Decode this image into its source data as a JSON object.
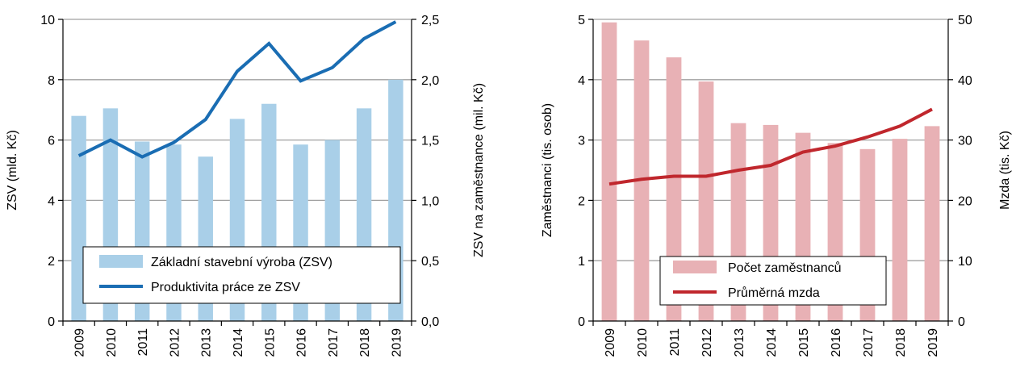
{
  "colors": {
    "left_bars": "#a9cfe8",
    "left_line": "#1a6db3",
    "right_bars": "#e8b1b5",
    "right_line": "#c0272d",
    "grid": "#a0a0a0"
  },
  "chart_data": [
    {
      "type": "bar",
      "categories": [
        "2009",
        "2010",
        "2011",
        "2012",
        "2013",
        "2014",
        "2015",
        "2016",
        "2017",
        "2018",
        "2019"
      ],
      "ylabel": "ZSV (mld. Kč)",
      "y2label": "ZSV na zaměstnance (mil. Kč)",
      "ylim": [
        0,
        10
      ],
      "y2lim": [
        0,
        2.5
      ],
      "yticks": [
        "0",
        "2",
        "4",
        "6",
        "8",
        "10"
      ],
      "y2ticks": [
        "0,0",
        "0,5",
        "1,0",
        "1,5",
        "2,0",
        "2,5"
      ],
      "grid": true,
      "legend_position": "bottom-center",
      "series": [
        {
          "name": "Základní stavební výroba (ZSV)",
          "type": "bar",
          "axis": "left",
          "values": [
            6.8,
            7.05,
            5.95,
            5.85,
            5.45,
            6.7,
            7.2,
            5.85,
            6.0,
            7.05,
            8.0
          ]
        },
        {
          "name": "Produktivita práce ze ZSV",
          "type": "line",
          "axis": "right",
          "values": [
            1.37,
            1.5,
            1.36,
            1.48,
            1.67,
            2.07,
            2.3,
            1.99,
            2.1,
            2.34,
            2.48
          ]
        }
      ]
    },
    {
      "type": "bar",
      "categories": [
        "2009",
        "2010",
        "2011",
        "2012",
        "2013",
        "2014",
        "2015",
        "2016",
        "2017",
        "2018",
        "2019"
      ],
      "ylabel": "Zaměstnanci (tis. osob)",
      "y2label": "Mzda (tis. Kč)",
      "ylim": [
        0,
        5
      ],
      "y2lim": [
        0,
        50
      ],
      "yticks": [
        "0",
        "1",
        "2",
        "3",
        "4",
        "5"
      ],
      "y2ticks": [
        "0",
        "10",
        "20",
        "30",
        "40",
        "50"
      ],
      "grid": true,
      "legend_position": "bottom-center",
      "series": [
        {
          "name": "Počet zaměstnanců",
          "type": "bar",
          "axis": "left",
          "values": [
            4.95,
            4.65,
            4.37,
            3.97,
            3.28,
            3.25,
            3.12,
            2.95,
            2.85,
            3.02,
            3.23
          ]
        },
        {
          "name": "Průměrná mzda",
          "type": "line",
          "axis": "right",
          "values": [
            22.7,
            23.5,
            24.0,
            24.0,
            25.0,
            25.8,
            28.0,
            29.0,
            30.5,
            32.3,
            35.1
          ]
        }
      ]
    }
  ]
}
